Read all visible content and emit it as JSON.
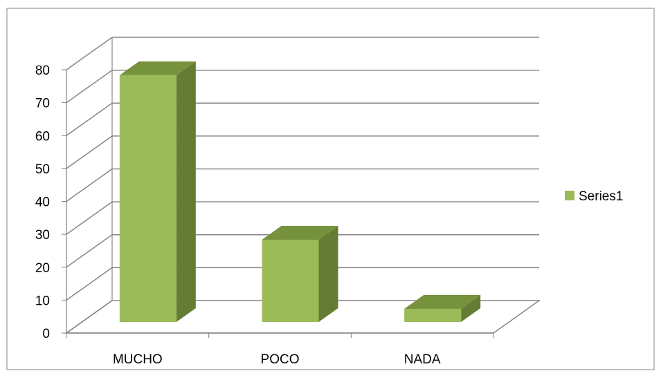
{
  "chart_data": {
    "type": "bar",
    "title": "",
    "xlabel": "",
    "ylabel": "",
    "categories": [
      "MUCHO",
      "POCO",
      "NADA"
    ],
    "series": [
      {
        "name": "Series1",
        "values": [
          75,
          25,
          4
        ]
      }
    ],
    "ylim": [
      0,
      80
    ],
    "yticks": [
      0,
      10,
      20,
      30,
      40,
      50,
      60,
      70,
      80
    ],
    "grid": true,
    "legend": "right",
    "three_d": true,
    "colors": {
      "bar_front": "#9BBB59",
      "bar_top": "#76923C",
      "bar_side": "#657C34",
      "gridline": "#868686",
      "axis": "#808080",
      "text": "#000000",
      "frame": "#868686"
    }
  }
}
